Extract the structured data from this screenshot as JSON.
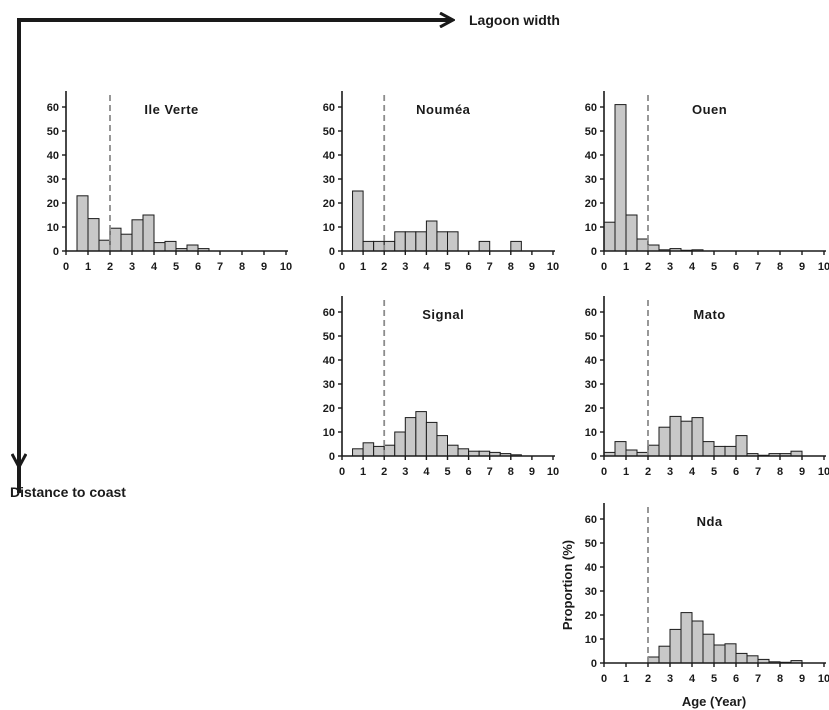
{
  "figure": {
    "lagoon_axis_label": "Lagoon width",
    "coast_axis_label": "Distance to coast"
  },
  "chart_data": [
    {
      "type": "bar",
      "title": "Ile Verte",
      "xlabel": "",
      "ylabel": "",
      "x_ticks": [
        0,
        1,
        2,
        3,
        4,
        5,
        6,
        7,
        8,
        9,
        10
      ],
      "y_ticks": [
        0,
        10,
        20,
        30,
        40,
        50,
        60
      ],
      "ylim": [
        0,
        65
      ],
      "xlim": [
        0,
        10
      ],
      "bin_width": 0.5,
      "reference_line_x": 2,
      "x": [
        0.5,
        1,
        1.5,
        2,
        2.5,
        3,
        3.5,
        4,
        4.5,
        5,
        5.5,
        6
      ],
      "values": [
        23,
        13.5,
        4.5,
        9.5,
        7,
        13,
        15,
        3.5,
        4,
        1,
        2.5,
        1
      ]
    },
    {
      "type": "bar",
      "title": "Nouméa",
      "xlabel": "",
      "ylabel": "",
      "x_ticks": [
        0,
        1,
        2,
        3,
        4,
        5,
        6,
        7,
        8,
        9,
        10
      ],
      "y_ticks": [
        0,
        10,
        20,
        30,
        40,
        50,
        60
      ],
      "ylim": [
        0,
        65
      ],
      "xlim": [
        0,
        10
      ],
      "bin_width": 0.5,
      "reference_line_x": 2,
      "x": [
        0.5,
        1,
        1.5,
        2,
        2.5,
        3,
        3.5,
        4,
        4.5,
        5,
        6.5,
        8
      ],
      "values": [
        25,
        4,
        4,
        4,
        8,
        8,
        8,
        12.5,
        8,
        8,
        4,
        4
      ]
    },
    {
      "type": "bar",
      "title": "Ouen",
      "xlabel": "",
      "ylabel": "",
      "x_ticks": [
        0,
        1,
        2,
        3,
        4,
        5,
        6,
        7,
        8,
        9,
        10
      ],
      "y_ticks": [
        0,
        10,
        20,
        30,
        40,
        50,
        60
      ],
      "ylim": [
        0,
        65
      ],
      "xlim": [
        0,
        10
      ],
      "bin_width": 0.5,
      "reference_line_x": 2,
      "x": [
        0,
        0.5,
        1,
        1.5,
        2,
        2.5,
        3,
        3.5,
        4
      ],
      "values": [
        12,
        61,
        15,
        5,
        2.5,
        0.5,
        1,
        0.3,
        0.5
      ]
    },
    {
      "type": "bar",
      "title": "Signal",
      "xlabel": "",
      "ylabel": "",
      "x_ticks": [
        0,
        1,
        2,
        3,
        4,
        5,
        6,
        7,
        8,
        9,
        10
      ],
      "y_ticks": [
        0,
        10,
        20,
        30,
        40,
        50,
        60
      ],
      "ylim": [
        0,
        65
      ],
      "xlim": [
        0,
        10
      ],
      "bin_width": 0.5,
      "reference_line_x": 2,
      "x": [
        0.5,
        1,
        1.5,
        2,
        2.5,
        3,
        3.5,
        4,
        4.5,
        5,
        5.5,
        6,
        6.5,
        7,
        7.5,
        8
      ],
      "values": [
        3,
        5.5,
        4,
        4.5,
        10,
        16,
        18.5,
        14,
        8.5,
        4.5,
        3,
        2,
        2,
        1.5,
        1,
        0.5
      ]
    },
    {
      "type": "bar",
      "title": "Mato",
      "xlabel": "",
      "ylabel": "",
      "x_ticks": [
        0,
        1,
        2,
        3,
        4,
        5,
        6,
        7,
        8,
        9,
        10
      ],
      "y_ticks": [
        0,
        10,
        20,
        30,
        40,
        50,
        60
      ],
      "ylim": [
        0,
        65
      ],
      "xlim": [
        0,
        10
      ],
      "bin_width": 0.5,
      "reference_line_x": 2,
      "x": [
        0,
        0.5,
        1,
        1.5,
        2,
        2.5,
        3,
        3.5,
        4,
        4.5,
        5,
        5.5,
        6,
        6.5,
        7,
        7.5,
        8,
        8.5
      ],
      "values": [
        1.5,
        6,
        2.5,
        1.5,
        4.5,
        12,
        16.5,
        14.5,
        16,
        6,
        4,
        4,
        8.5,
        1,
        0.3,
        1,
        1,
        2
      ]
    },
    {
      "type": "bar",
      "title": "Nda",
      "xlabel": "Age (Year)",
      "ylabel": "Proportion (%)",
      "x_ticks": [
        0,
        1,
        2,
        3,
        4,
        5,
        6,
        7,
        8,
        9,
        10
      ],
      "y_ticks": [
        0,
        10,
        20,
        30,
        40,
        50,
        60
      ],
      "ylim": [
        0,
        65
      ],
      "xlim": [
        0,
        10
      ],
      "bin_width": 0.5,
      "reference_line_x": 2,
      "x": [
        2,
        2.5,
        3,
        3.5,
        4,
        4.5,
        5,
        5.5,
        6,
        6.5,
        7,
        7.5,
        8,
        8.5
      ],
      "values": [
        2.5,
        7,
        14,
        21,
        17.5,
        12,
        7.5,
        8,
        4,
        3,
        1.5,
        0.5,
        0.3,
        1
      ]
    }
  ]
}
